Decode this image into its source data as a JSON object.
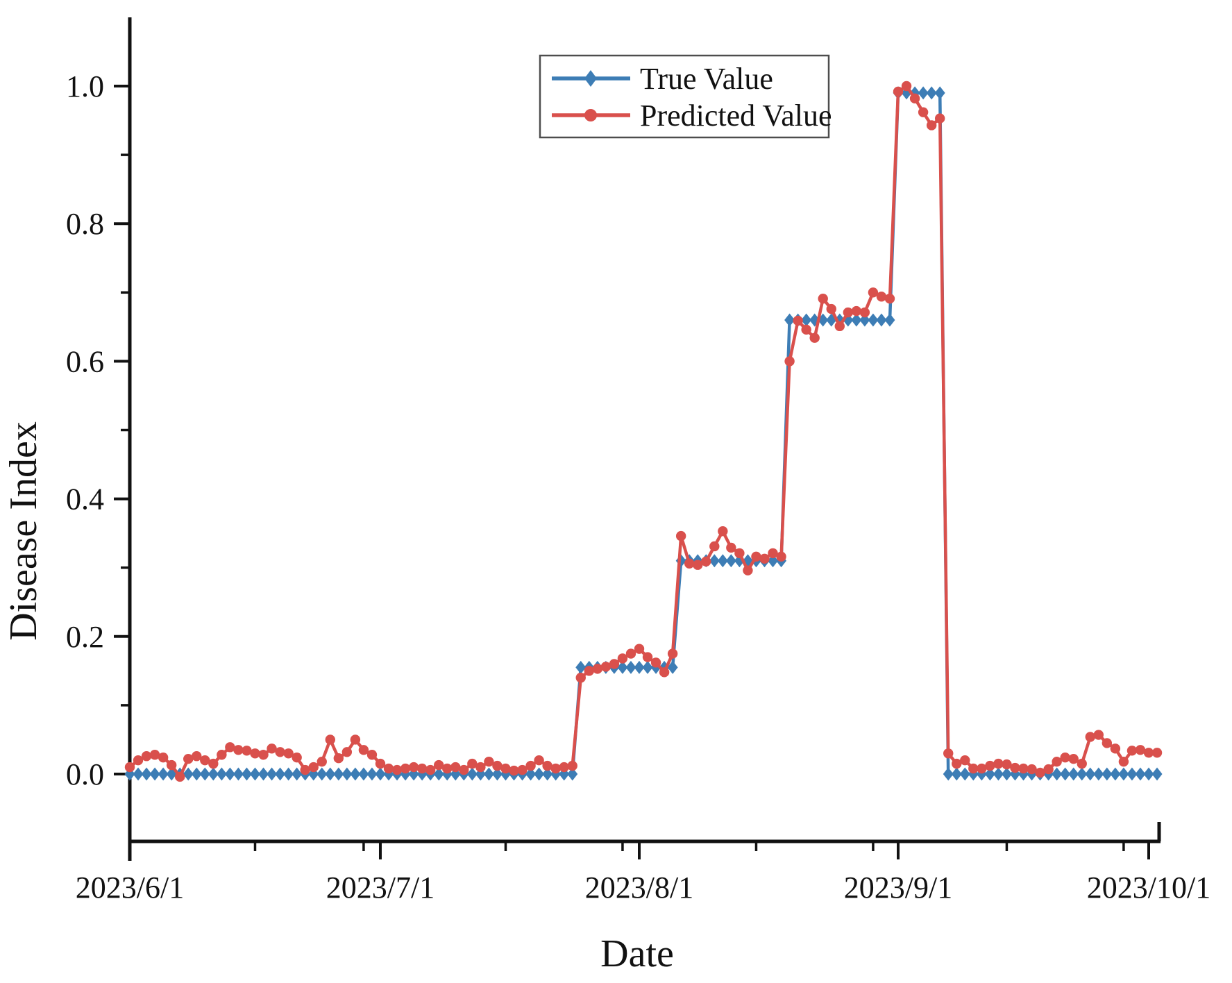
{
  "chart_data": {
    "type": "line",
    "title": "",
    "xlabel": "Date",
    "ylabel": "Disease Index",
    "x_unit": "daily values, days since 2023/6/1 (index 0 = 2023/6/1, last index 123 = 2023/10/2)",
    "x_total_days": 124,
    "x_tick_labels": [
      "2023/6/1",
      "2023/7/1",
      "2023/8/1",
      "2023/9/1",
      "2023/10/1"
    ],
    "x_major_tick_days": [
      0,
      30,
      61,
      92,
      122
    ],
    "x_minor_tick_days": [
      15,
      28,
      45,
      59,
      75,
      89,
      105,
      119
    ],
    "y_tick_labels": [
      "0.0",
      "0.2",
      "0.4",
      "0.6",
      "0.8",
      "1.0"
    ],
    "y_tick_values": [
      0,
      0.2,
      0.4,
      0.6,
      0.8,
      1.0
    ],
    "y_minor_tick_values": [
      0.1,
      0.3,
      0.5,
      0.7,
      0.9
    ],
    "ylim": [
      -0.1,
      1.11
    ],
    "grid": "off",
    "legend_position": "top-center",
    "series": [
      {
        "name": "True Value",
        "color": "#3d7db5",
        "marker": "diamond",
        "values": [
          0,
          0,
          0,
          0,
          0,
          0,
          0,
          0,
          0,
          0,
          0,
          0,
          0,
          0,
          0,
          0,
          0,
          0,
          0,
          0,
          0,
          0,
          0,
          0,
          0,
          0,
          0,
          0,
          0,
          0,
          0,
          0,
          0,
          0,
          0,
          0,
          0,
          0,
          0,
          0,
          0,
          0,
          0,
          0,
          0,
          0,
          0,
          0,
          0,
          0,
          0,
          0,
          0,
          0,
          0.155,
          0.155,
          0.155,
          0.155,
          0.155,
          0.155,
          0.155,
          0.155,
          0.155,
          0.155,
          0.155,
          0.155,
          0.31,
          0.31,
          0.31,
          0.31,
          0.31,
          0.31,
          0.31,
          0.31,
          0.31,
          0.31,
          0.31,
          0.31,
          0.31,
          0.66,
          0.66,
          0.66,
          0.66,
          0.66,
          0.66,
          0.66,
          0.66,
          0.66,
          0.66,
          0.66,
          0.66,
          0.66,
          0.99,
          0.99,
          0.99,
          0.99,
          0.99,
          0.99,
          0,
          0,
          0,
          0,
          0,
          0,
          0,
          0,
          0,
          0,
          0,
          0,
          0,
          0,
          0,
          0,
          0,
          0,
          0,
          0,
          0,
          0,
          0,
          0,
          0,
          0
        ]
      },
      {
        "name": "Predicted Value",
        "color": "#d9504c",
        "marker": "circle",
        "values": [
          0.01,
          0.02,
          0.026,
          0.028,
          0.024,
          0.013,
          -0.004,
          0.022,
          0.026,
          0.02,
          0.015,
          0.028,
          0.039,
          0.035,
          0.034,
          0.03,
          0.028,
          0.037,
          0.032,
          0.03,
          0.024,
          0.006,
          0.01,
          0.018,
          0.05,
          0.023,
          0.032,
          0.05,
          0.035,
          0.028,
          0.015,
          0.008,
          0.006,
          0.008,
          0.01,
          0.008,
          0.006,
          0.013,
          0.008,
          0.01,
          0.006,
          0.015,
          0.01,
          0.018,
          0.012,
          0.008,
          0.005,
          0.006,
          0.012,
          0.02,
          0.012,
          0.008,
          0.01,
          0.012,
          0.14,
          0.15,
          0.153,
          0.156,
          0.16,
          0.168,
          0.175,
          0.182,
          0.17,
          0.162,
          0.148,
          0.175,
          0.346,
          0.306,
          0.304,
          0.309,
          0.331,
          0.353,
          0.329,
          0.321,
          0.296,
          0.316,
          0.313,
          0.321,
          0.316,
          0.6,
          0.659,
          0.646,
          0.634,
          0.691,
          0.676,
          0.651,
          0.671,
          0.673,
          0.671,
          0.7,
          0.694,
          0.691,
          0.992,
          1.0,
          0.982,
          0.962,
          0.943,
          0.953,
          0.03,
          0.015,
          0.02,
          0.008,
          0.008,
          0.012,
          0.015,
          0.014,
          0.009,
          0.008,
          0.007,
          0.002,
          0.007,
          0.018,
          0.024,
          0.022,
          0.015,
          0.054,
          0.057,
          0.045,
          0.037,
          0.018,
          0.034,
          0.035,
          0.031,
          0.031
        ]
      }
    ]
  }
}
